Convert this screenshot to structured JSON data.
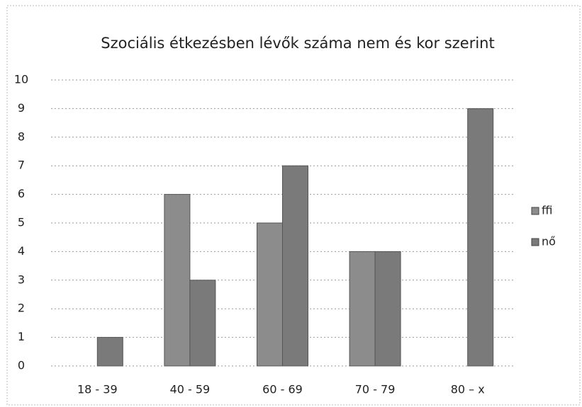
{
  "chart_data": {
    "type": "bar",
    "title": "Szociális étkezésben lévők száma nem és kor szerint",
    "categories": [
      "18 - 39",
      "40 - 59",
      "60 - 69",
      "70 - 79",
      "80 – x"
    ],
    "series": [
      {
        "name": "ffi",
        "color": "#8c8c8c",
        "values": [
          0,
          6,
          5,
          4,
          0
        ]
      },
      {
        "name": "nő",
        "color": "#7a7a7a",
        "values": [
          1,
          3,
          7,
          4,
          9
        ]
      }
    ],
    "ylim": [
      0,
      10
    ],
    "yticks": [
      0,
      1,
      2,
      3,
      4,
      5,
      6,
      7,
      8,
      9,
      10
    ],
    "grid": true,
    "legend": "right"
  }
}
